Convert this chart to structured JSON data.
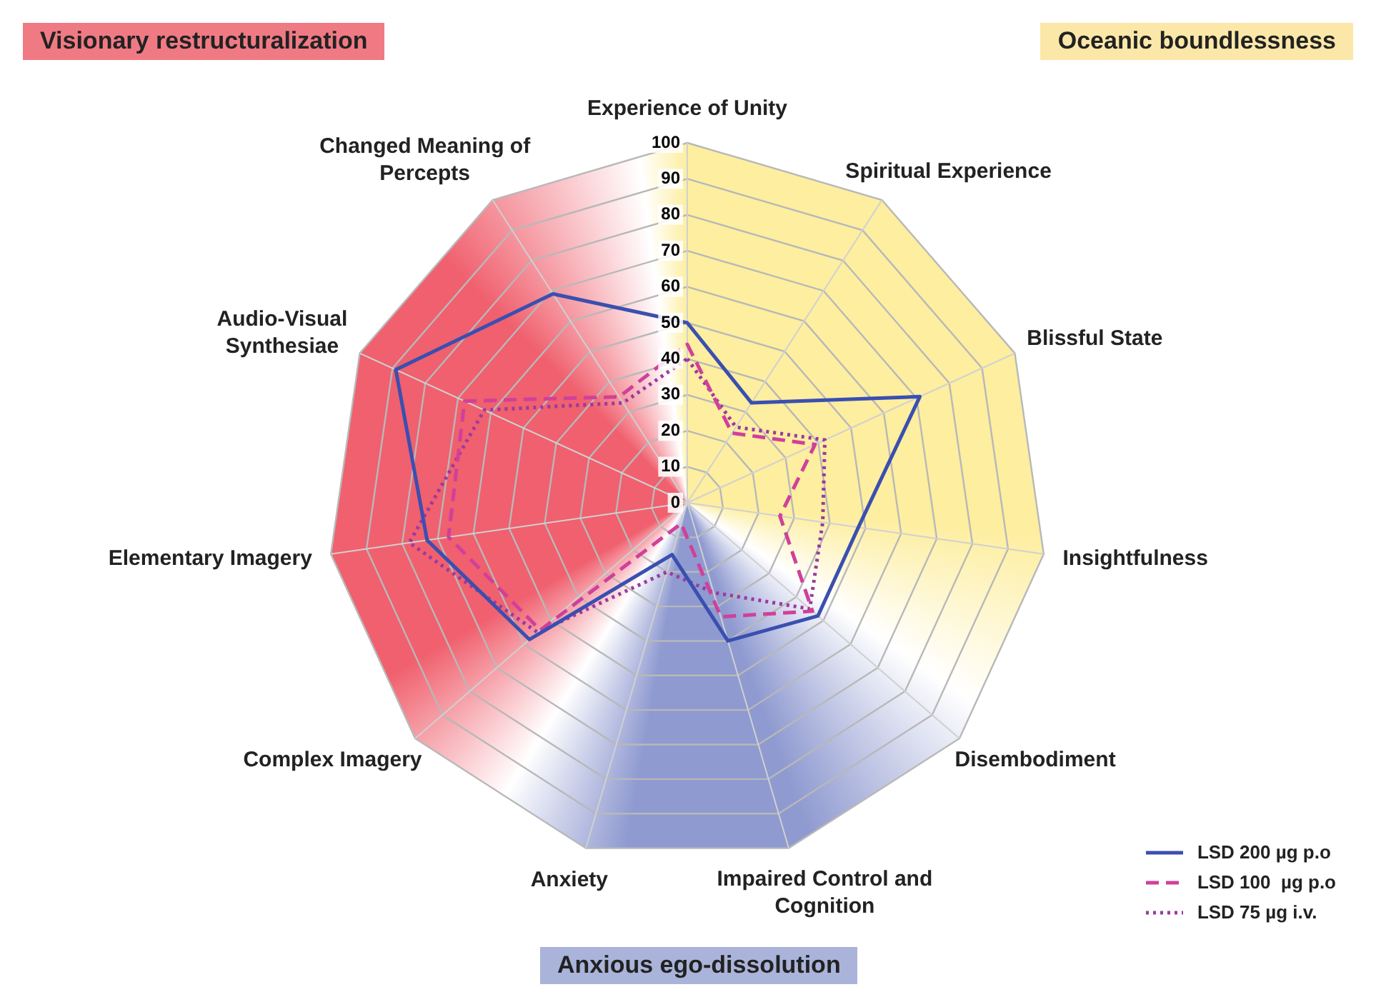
{
  "chart_data": {
    "type": "radar",
    "categories": [
      "Experience of Unity",
      "Spiritual Experience",
      "Blissful State",
      "Insightfulness",
      "Disembodiment",
      "Impaired Control and Cognition",
      "Anxiety",
      "Complex Imagery",
      "Elementary Imagery",
      "Audio-Visual Synthesiae",
      "Changed Meaning of Percepts"
    ],
    "series": [
      {
        "name": "LSD 200 µg p.o",
        "color": "#3a4fb0",
        "line_style": "solid",
        "values": [
          50,
          33,
          71,
          48,
          48,
          40,
          15,
          58,
          73,
          89,
          69
        ]
      },
      {
        "name": "LSD 100  µg p.o",
        "color": "#d0409a",
        "line_style": "dashed",
        "values": [
          44,
          23,
          39,
          26,
          46,
          33,
          6,
          54,
          67,
          68,
          35
        ]
      },
      {
        "name": "LSD 75 µg i.v.",
        "color": "#9a3aa0",
        "line_style": "dotted",
        "values": [
          40,
          25,
          42,
          38,
          45,
          26,
          20,
          55,
          78,
          62,
          33
        ]
      }
    ],
    "ylim": [
      0,
      100
    ],
    "yticks": [
      0,
      10,
      20,
      30,
      40,
      50,
      60,
      70,
      80,
      90,
      100
    ],
    "grid": true,
    "legend": "bottom right",
    "marker": "none",
    "annotations": [
      "Visionary restructuralization",
      "Oceanic boundlessness",
      "Anxious ego-dissolution"
    ]
  }
}
